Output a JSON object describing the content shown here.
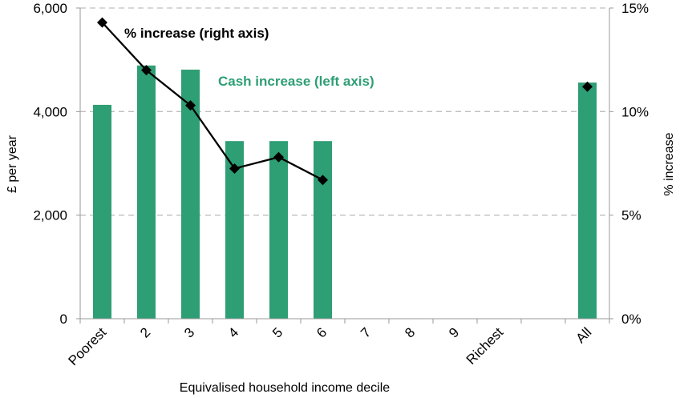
{
  "chart_data": {
    "type": "bar",
    "categories": [
      "Poorest",
      "2",
      "3",
      "4",
      "5",
      "6",
      "7",
      "8",
      "9",
      "Richest",
      "",
      "All"
    ],
    "series": [
      {
        "name": "Cash increase (left axis)",
        "axis": "left",
        "kind": "bar",
        "values": [
          4130,
          4890,
          4810,
          3430,
          3430,
          3430,
          null,
          null,
          null,
          null,
          null,
          4560
        ],
        "color": "#2e9e74"
      },
      {
        "name": "% increase (right axis)",
        "axis": "right",
        "kind": "line",
        "values": [
          14.3,
          12.0,
          10.3,
          7.25,
          7.8,
          6.7,
          null,
          null,
          null,
          null,
          null,
          11.2
        ],
        "connect_indices": [
          0,
          1,
          2,
          3,
          4,
          5
        ],
        "color": "#000000"
      }
    ],
    "xlabel": "Equivalised household income decile",
    "ylabel": "£ per year",
    "ylabel_right": "% increase",
    "ylim": [
      0,
      6000
    ],
    "ylim_right": [
      0,
      15
    ],
    "yticks": [
      "0",
      "2,000",
      "4,000",
      "6,000"
    ],
    "yticks_right": [
      "0%",
      "5%",
      "10%",
      "15%"
    ],
    "grid": "horizontal dashed",
    "annotations": {
      "line_label": "% increase (right axis)",
      "bar_label": "Cash increase (left axis)"
    }
  }
}
